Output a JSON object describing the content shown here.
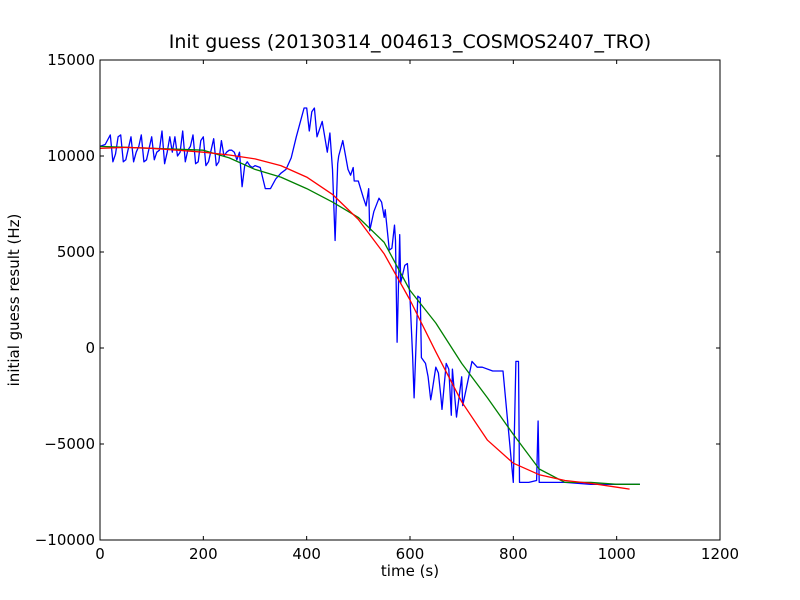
{
  "chart_data": {
    "type": "line",
    "title": "Init guess (20130314_004613_COSMOS2407_TRO)",
    "xlabel": "time (s)",
    "ylabel": "initial guess result (Hz)",
    "xlim": [
      0,
      1200
    ],
    "ylim": [
      -10000,
      15000
    ],
    "xticks": [
      0,
      200,
      400,
      600,
      800,
      1000,
      1200
    ],
    "yticks": [
      -10000,
      -5000,
      0,
      5000,
      10000,
      15000
    ],
    "grid": false,
    "legend": "none",
    "series": [
      {
        "color": "#0000ff",
        "x": [
          0,
          10,
          20,
          25,
          30,
          35,
          40,
          45,
          50,
          55,
          60,
          65,
          70,
          75,
          80,
          85,
          90,
          95,
          100,
          105,
          110,
          115,
          120,
          125,
          130,
          135,
          140,
          145,
          150,
          155,
          160,
          165,
          170,
          175,
          180,
          185,
          190,
          195,
          200,
          205,
          210,
          215,
          220,
          225,
          230,
          235,
          240,
          245,
          250,
          255,
          260,
          265,
          270,
          275,
          280,
          285,
          290,
          295,
          300,
          310,
          320,
          330,
          340,
          350,
          360,
          370,
          380,
          390,
          395,
          400,
          405,
          410,
          415,
          420,
          430,
          440,
          445,
          450,
          455,
          460,
          462,
          470,
          480,
          485,
          490,
          492,
          500,
          510,
          515,
          520,
          522,
          530,
          540,
          545,
          550,
          552,
          560,
          565,
          570,
          572,
          575,
          580,
          582,
          590,
          595,
          600,
          605,
          608,
          615,
          620,
          622,
          630,
          635,
          640,
          642,
          650,
          655,
          660,
          662,
          670,
          675,
          680,
          682,
          690,
          700,
          702,
          720,
          730,
          740,
          760,
          780,
          800,
          805,
          810,
          812,
          830,
          845,
          848,
          850,
          900,
          950,
          1000,
          1045
        ],
        "y": [
          10500,
          10600,
          11100,
          9700,
          10100,
          11000,
          11100,
          9700,
          9800,
          10400,
          11000,
          9700,
          10200,
          10500,
          11100,
          9700,
          9800,
          10400,
          11000,
          9800,
          10200,
          10300,
          11300,
          9600,
          10200,
          11000,
          10200,
          11000,
          10000,
          10200,
          11300,
          9700,
          10300,
          10500,
          11100,
          9600,
          9700,
          10800,
          11000,
          9500,
          9700,
          10300,
          10900,
          9500,
          9700,
          10800,
          10000,
          10200,
          10300,
          10300,
          10200,
          9800,
          10200,
          8400,
          9500,
          9700,
          9500,
          9400,
          9500,
          9400,
          8300,
          8300,
          8800,
          9100,
          9300,
          9900,
          11000,
          12000,
          12500,
          12500,
          11300,
          12300,
          12500,
          11000,
          11800,
          10200,
          11200,
          9300,
          5600,
          9600,
          10000,
          10800,
          9300,
          9000,
          9400,
          8700,
          8700,
          7800,
          7400,
          8300,
          6100,
          7100,
          7800,
          7600,
          6800,
          7200,
          5100,
          5200,
          6400,
          5600,
          300,
          5900,
          3400,
          4300,
          4400,
          2600,
          -400,
          -2600,
          2700,
          2600,
          -500,
          -800,
          -1500,
          -2700,
          -2400,
          -1000,
          -1300,
          -2600,
          -3200,
          -800,
          -1100,
          -3500,
          -1100,
          -3600,
          -1500,
          -3000,
          -700,
          -1000,
          -1000,
          -1200,
          -1200,
          -7000,
          -700,
          -700,
          -7000,
          -7000,
          -6900,
          -3800,
          -7000,
          -7000,
          -7100,
          -7100,
          -7100
        ]
      },
      {
        "color": "#008000",
        "x": [
          0,
          100,
          200,
          250,
          300,
          350,
          400,
          450,
          500,
          550,
          600,
          650,
          700,
          750,
          800,
          850,
          900,
          950,
          1000,
          1045
        ],
        "y": [
          10500,
          10400,
          10300,
          9900,
          9300,
          8900,
          8300,
          7600,
          6800,
          5500,
          3000,
          1300,
          -800,
          -2600,
          -4500,
          -6300,
          -7000,
          -7000,
          -7100,
          -7100
        ]
      },
      {
        "color": "#ff0000",
        "x": [
          0,
          50,
          100,
          150,
          200,
          250,
          300,
          350,
          400,
          450,
          500,
          550,
          600,
          650,
          700,
          750,
          800,
          850,
          900,
          950,
          1000,
          1025
        ],
        "y": [
          10400,
          10450,
          10400,
          10300,
          10200,
          10050,
          9850,
          9500,
          8900,
          8000,
          6700,
          4900,
          2500,
          -200,
          -2800,
          -4800,
          -6000,
          -6600,
          -6900,
          -7050,
          -7250,
          -7350
        ]
      }
    ]
  }
}
